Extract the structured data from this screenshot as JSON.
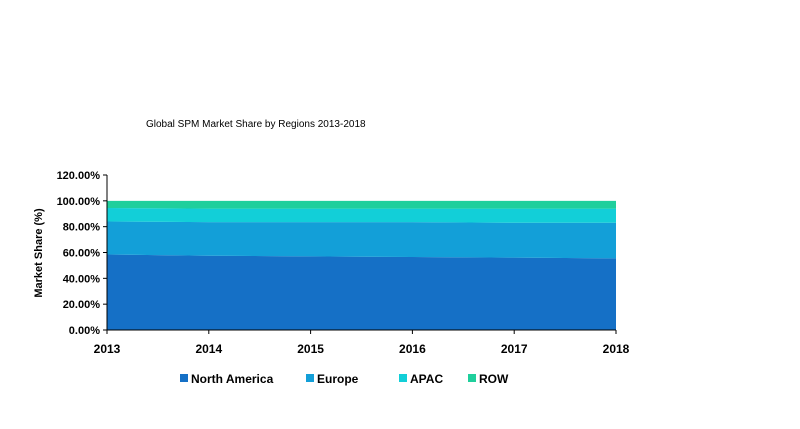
{
  "chart_data": {
    "type": "area",
    "stacked": true,
    "title": "Global SPM Market Share by Regions 2013-2018",
    "xlabel": "",
    "ylabel": "Market Share (%)",
    "x": [
      "2013",
      "2014",
      "2015",
      "2016",
      "2017",
      "2018"
    ],
    "ylim": [
      0,
      120
    ],
    "yticks": [
      "0.00%",
      "20.00%",
      "40.00%",
      "60.00%",
      "80.00%",
      "100.00%",
      "120.00%"
    ],
    "grid": false,
    "legend": "bottom",
    "series": [
      {
        "name": "North America",
        "color": "#1570c6",
        "values": [
          58.5,
          57.5,
          57.0,
          56.5,
          56.0,
          55.5
        ]
      },
      {
        "name": "Europe",
        "color": "#139fd8",
        "values": [
          25.5,
          26.0,
          26.5,
          27.0,
          27.0,
          27.5
        ]
      },
      {
        "name": "APAC",
        "color": "#12cfd8",
        "values": [
          10.5,
          10.5,
          10.5,
          10.5,
          11.0,
          11.0
        ]
      },
      {
        "name": "ROW",
        "color": "#1fcf9c",
        "values": [
          5.5,
          6.0,
          6.0,
          6.0,
          6.0,
          6.0
        ]
      }
    ]
  }
}
